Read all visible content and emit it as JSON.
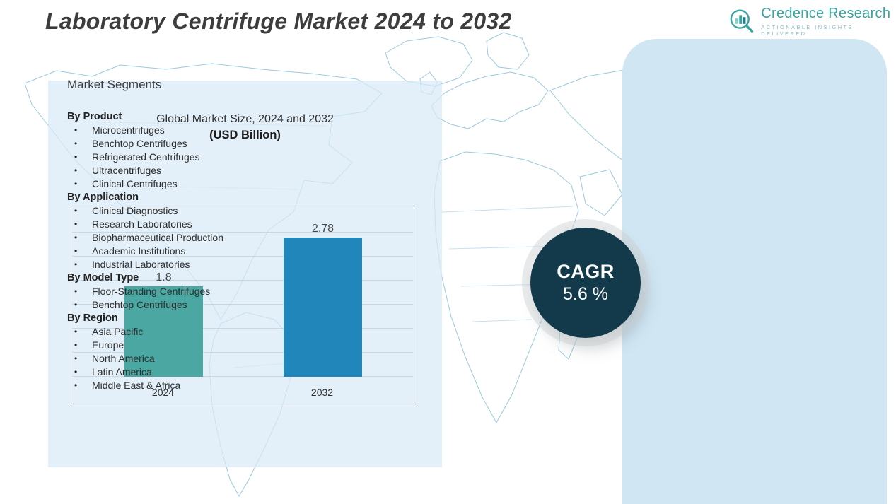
{
  "page": {
    "title": "Laboratory Centrifuge Market 2024 to 2032"
  },
  "logo": {
    "name": "Credence Research",
    "tagline": "Actionable Insights Delivered"
  },
  "colors": {
    "brand_teal": "#35a59e",
    "cagr_bg": "#123a4b",
    "panel_blue": "#d0e6f3",
    "map_line": "#9cc8de"
  },
  "chart_data": {
    "type": "bar",
    "title": "Global Market Size, 2024 and 2032",
    "subtitle": "(USD Billion)",
    "categories": [
      "2024",
      "2032"
    ],
    "values": [
      1.8,
      2.78
    ],
    "ylim": [
      0,
      3.2
    ],
    "grid": true,
    "legend": false,
    "colors": [
      "#4aa7a2",
      "#2186ba"
    ]
  },
  "cagr": {
    "label": "CAGR",
    "value": "5.6 %"
  },
  "segments": {
    "title": "Market Segments",
    "groups": [
      {
        "label": "By Product",
        "items": [
          "Microcentrifuges",
          "Benchtop Centrifuges",
          "Refrigerated Centrifuges",
          "Ultracentrifuges",
          "Clinical Centrifuges"
        ]
      },
      {
        "label": "By Application",
        "items": [
          "Clinical Diagnostics",
          "Research Laboratories",
          "Biopharmaceutical Production",
          "Academic Institutions",
          "Industrial Laboratories"
        ]
      },
      {
        "label": "By Model Type",
        "items": [
          "Floor-Standing Centrifuges",
          "Benchtop Centrifuges"
        ]
      },
      {
        "label": "By Region",
        "items": [
          "Asia Pacific",
          "Europe",
          "North America",
          "Latin America",
          "Middle East & Africa"
        ]
      }
    ]
  }
}
